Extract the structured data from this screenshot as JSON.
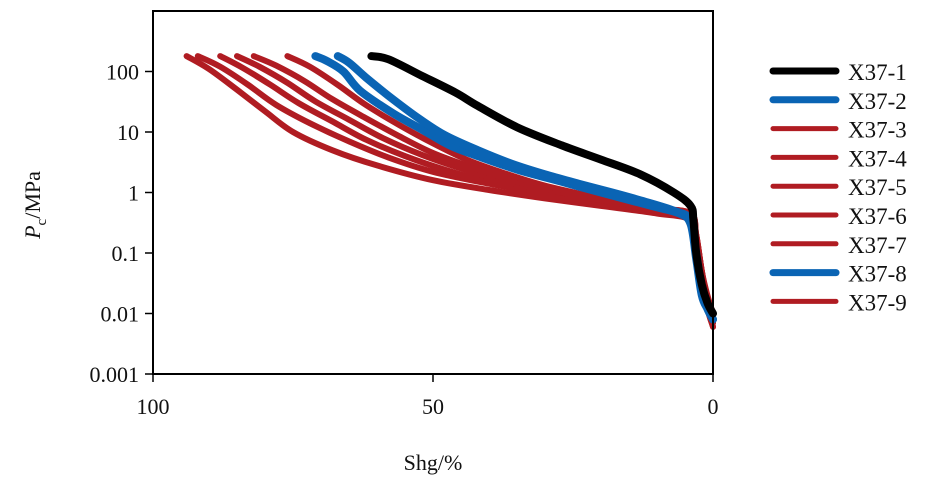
{
  "chart_data": {
    "type": "line",
    "title": "",
    "xlabel": "Shg/%",
    "ylabel_main": "P",
    "ylabel_sub": "c",
    "ylabel_rest": "/MPa",
    "xlim": [
      100,
      0
    ],
    "ylim": [
      0.001,
      1000
    ],
    "yscale": "log",
    "x_reversed": true,
    "grid": false,
    "legend_position": "right",
    "x_ticks": [
      100,
      50,
      0
    ],
    "x_tick_labels": [
      "100",
      "50",
      "0"
    ],
    "y_ticks": [
      100,
      10,
      1,
      0.1,
      0.01,
      0.001
    ],
    "y_tick_labels": [
      "100",
      "10",
      "1",
      "0.1",
      "0.01",
      "0.001"
    ],
    "series": [
      {
        "name": "X37-1",
        "color": "#000000",
        "width": "thick",
        "x": [
          61,
          58,
          52,
          46,
          42,
          35,
          27,
          20,
          13,
          7,
          4,
          3.5,
          3,
          2,
          1,
          0
        ],
        "y": [
          180,
          160,
          85,
          45,
          27,
          12,
          6,
          3.5,
          2,
          1,
          0.6,
          0.35,
          0.1,
          0.03,
          0.015,
          0.01
        ]
      },
      {
        "name": "X37-2",
        "color": "#0a64b4",
        "width": "thick",
        "x": [
          71,
          69,
          66,
          63,
          57,
          52,
          47,
          42,
          35,
          27,
          20,
          11,
          6,
          4,
          3,
          2,
          1,
          0
        ],
        "y": [
          180,
          150,
          100,
          48,
          20,
          11,
          6,
          4,
          2.4,
          1.5,
          1,
          0.6,
          0.45,
          0.3,
          0.08,
          0.02,
          0.012,
          0.008
        ]
      },
      {
        "name": "X37-3",
        "color": "#b01c22",
        "width": "medium",
        "x": [
          94,
          90,
          85,
          80,
          75,
          68,
          60,
          50,
          40,
          30,
          20,
          10,
          4,
          3,
          2,
          1,
          0
        ],
        "y": [
          180,
          110,
          50,
          22,
          10,
          5,
          2.8,
          1.6,
          1.1,
          0.8,
          0.6,
          0.45,
          0.35,
          0.15,
          0.04,
          0.015,
          0.008
        ]
      },
      {
        "name": "X37-4",
        "color": "#b01c22",
        "width": "medium",
        "x": [
          92,
          88,
          83,
          78,
          72,
          65,
          58,
          50,
          40,
          30,
          20,
          10,
          4,
          3,
          2,
          1,
          0
        ],
        "y": [
          180,
          120,
          60,
          28,
          14,
          7,
          3.8,
          2.2,
          1.4,
          0.95,
          0.7,
          0.5,
          0.4,
          0.2,
          0.05,
          0.02,
          0.01
        ]
      },
      {
        "name": "X37-5",
        "color": "#b01c22",
        "width": "medium",
        "x": [
          88,
          84,
          79,
          74,
          68,
          62,
          55,
          48,
          40,
          30,
          20,
          10,
          4,
          3,
          2,
          1,
          0
        ],
        "y": [
          180,
          115,
          60,
          30,
          15,
          7.5,
          4,
          2.4,
          1.5,
          1,
          0.75,
          0.55,
          0.45,
          0.2,
          0.05,
          0.015,
          0.007
        ]
      },
      {
        "name": "X37-6",
        "color": "#b01c22",
        "width": "medium",
        "x": [
          85,
          81,
          76,
          71,
          65,
          59,
          52,
          45,
          38,
          30,
          20,
          10,
          4,
          3,
          2,
          1,
          0
        ],
        "y": [
          180,
          120,
          65,
          32,
          16,
          8,
          4.2,
          2.5,
          1.6,
          1.1,
          0.8,
          0.55,
          0.45,
          0.2,
          0.05,
          0.015,
          0.006
        ]
      },
      {
        "name": "X37-7",
        "color": "#b01c22",
        "width": "medium",
        "x": [
          82,
          78,
          73,
          68,
          62,
          56,
          50,
          43,
          36,
          28,
          20,
          10,
          4,
          3,
          2,
          1,
          0
        ],
        "y": [
          180,
          125,
          70,
          35,
          17,
          8.5,
          4.5,
          2.6,
          1.6,
          1.05,
          0.75,
          0.5,
          0.35,
          0.15,
          0.04,
          0.012,
          0.006
        ]
      },
      {
        "name": "X37-8",
        "color": "#0a64b4",
        "width": "thick",
        "x": [
          67,
          65,
          62,
          58,
          53,
          48,
          42,
          36,
          30,
          24,
          18,
          12,
          7,
          4,
          3,
          2,
          1,
          0
        ],
        "y": [
          180,
          140,
          80,
          40,
          18,
          9,
          5,
          3,
          2,
          1.4,
          1,
          0.7,
          0.5,
          0.35,
          0.1,
          0.025,
          0.012,
          0.008
        ]
      },
      {
        "name": "X37-9",
        "color": "#b01c22",
        "width": "medium",
        "x": [
          76,
          72,
          67,
          62,
          56,
          50,
          44,
          38,
          30,
          20,
          10,
          4,
          3,
          2,
          1,
          0
        ],
        "y": [
          180,
          120,
          60,
          28,
          13,
          6.5,
          3.5,
          2.2,
          1.3,
          0.8,
          0.5,
          0.4,
          0.18,
          0.05,
          0.015,
          0.007
        ]
      }
    ]
  }
}
